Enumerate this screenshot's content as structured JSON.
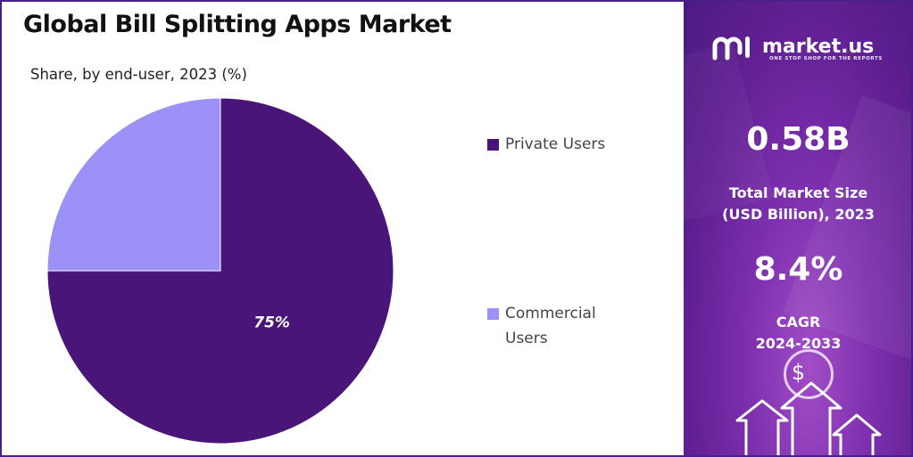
{
  "title": "Global Bill Splitting Apps Market",
  "subtitle": "Share, by end-user, 2023 (%)",
  "chart_data": {
    "type": "pie",
    "labels": [
      "Private Users",
      "Commercial Users"
    ],
    "values": [
      75,
      25
    ],
    "colors": [
      "#4a1578",
      "#9b91f6"
    ],
    "data_labels": [
      "75%",
      ""
    ],
    "legend_placement": "right"
  },
  "legend": [
    {
      "label": "Private Users",
      "color": "#4a1578"
    },
    {
      "label": "Commercial Users",
      "color": "#9b91f6"
    }
  ],
  "brand": {
    "name": "market.us",
    "tagline": "ONE STOP SHOP FOR THE REPORTS",
    "icon": "market-us-logo-icon"
  },
  "stats": {
    "market_size_value": "0.58B",
    "market_size_label_1": "Total Market Size",
    "market_size_label_2": "(USD Billion), 2023",
    "cagr_value": "8.4%",
    "cagr_label_1": "CAGR",
    "cagr_label_2": "2024-2033"
  },
  "panel": {
    "dollar_symbol": "$"
  },
  "colors": {
    "panel_dark": "#4c1a82",
    "panel_light": "#a24dc7",
    "border": "#4a1f86"
  }
}
